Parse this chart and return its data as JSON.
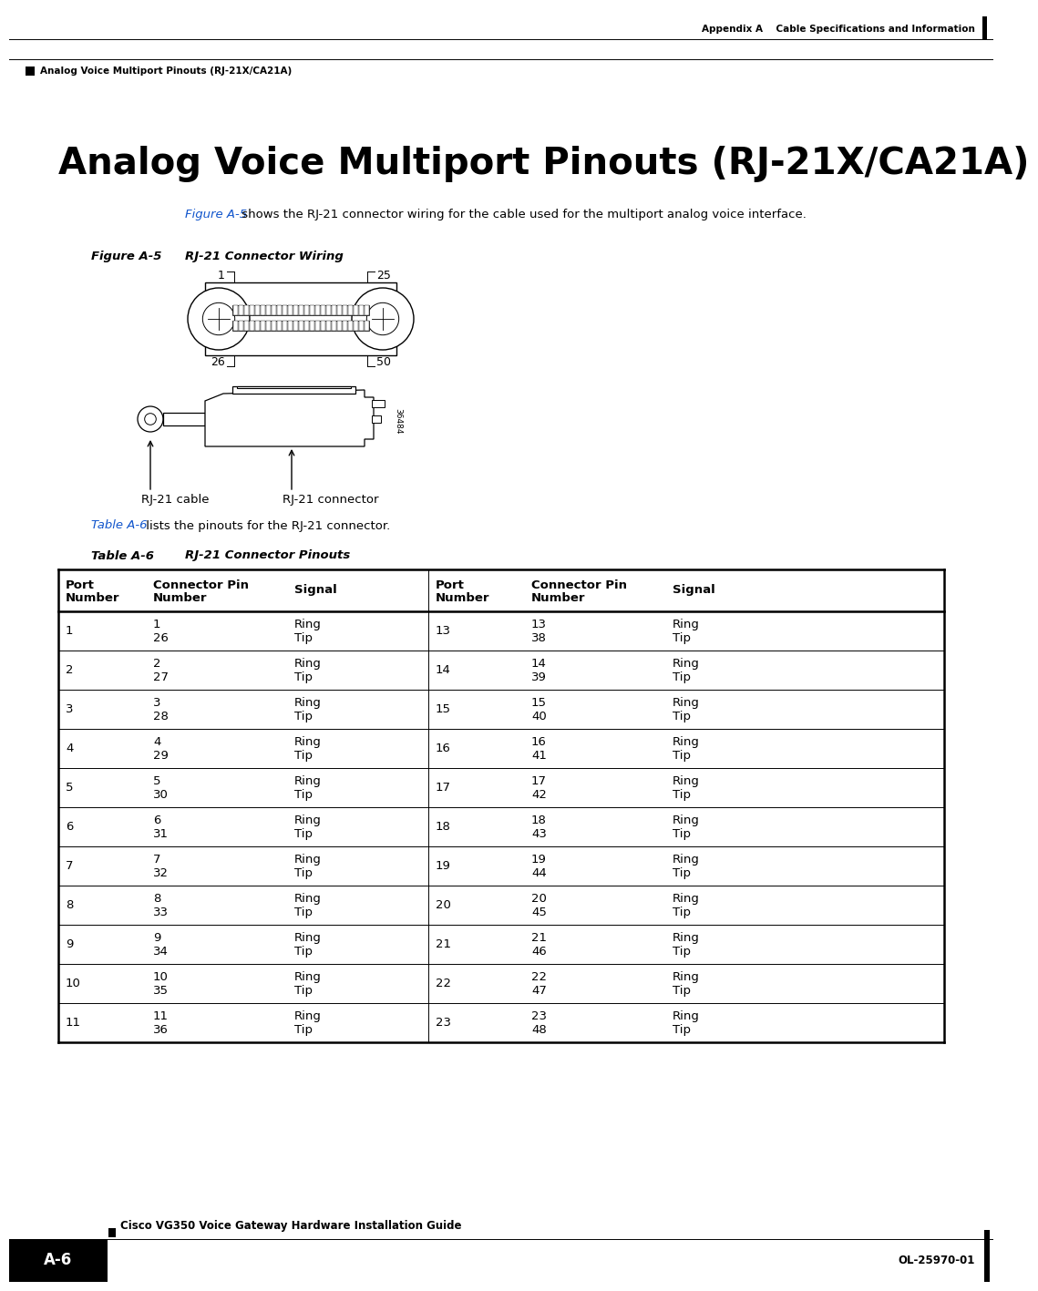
{
  "page_bg": "#ffffff",
  "header_line_color": "#000000",
  "header_text_right": "Appendix A    Cable Specifications and Information",
  "header_text_left": "Analog Voice Multiport Pinouts (RJ-21X/CA21A)",
  "main_title": "Analog Voice Multiport Pinouts (RJ-21X/CA21A)",
  "intro_link": "Figure A-5",
  "intro_text": " shows the RJ-21 connector wiring for the cable used for the multiport analog voice interface.",
  "figure_label": "Figure A-5",
  "figure_title": "RJ-21 Connector Wiring",
  "figure_caption_left": "RJ-21 cable",
  "figure_caption_right": "RJ-21 connector",
  "table_ref_link": "Table A-6",
  "table_ref_text": " lists the pinouts for the RJ-21 connector.",
  "table_label": "Table A-6",
  "table_title": "RJ-21 Connector Pinouts",
  "col_headers": [
    "Port\nNumber",
    "Connector Pin\nNumber",
    "Signal",
    "Port\nNumber",
    "Connector Pin\nNumber",
    "Signal"
  ],
  "table_data": [
    [
      "1",
      "1\n26",
      "Ring\nTip",
      "13",
      "13\n38",
      "Ring\nTip"
    ],
    [
      "2",
      "2\n27",
      "Ring\nTip",
      "14",
      "14\n39",
      "Ring\nTip"
    ],
    [
      "3",
      "3\n28",
      "Ring\nTip",
      "15",
      "15\n40",
      "Ring\nTip"
    ],
    [
      "4",
      "4\n29",
      "Ring\nTip",
      "16",
      "16\n41",
      "Ring\nTip"
    ],
    [
      "5",
      "5\n30",
      "Ring\nTip",
      "17",
      "17\n42",
      "Ring\nTip"
    ],
    [
      "6",
      "6\n31",
      "Ring\nTip",
      "18",
      "18\n43",
      "Ring\nTip"
    ],
    [
      "7",
      "7\n32",
      "Ring\nTip",
      "19",
      "19\n44",
      "Ring\nTip"
    ],
    [
      "8",
      "8\n33",
      "Ring\nTip",
      "20",
      "20\n45",
      "Ring\nTip"
    ],
    [
      "9",
      "9\n34",
      "Ring\nTip",
      "21",
      "21\n46",
      "Ring\nTip"
    ],
    [
      "10",
      "10\n35",
      "Ring\nTip",
      "22",
      "22\n47",
      "Ring\nTip"
    ],
    [
      "11",
      "11\n36",
      "Ring\nTip",
      "23",
      "23\n48",
      "Ring\nTip"
    ]
  ],
  "footer_title": "Cisco VG350 Voice Gateway Hardware Installation Guide",
  "footer_page_label": "A-6",
  "footer_doc_num": "OL-25970-01",
  "link_color": "#1155CC",
  "text_color": "#000000",
  "table_line_color": "#000000",
  "header_bar_color": "#000000"
}
